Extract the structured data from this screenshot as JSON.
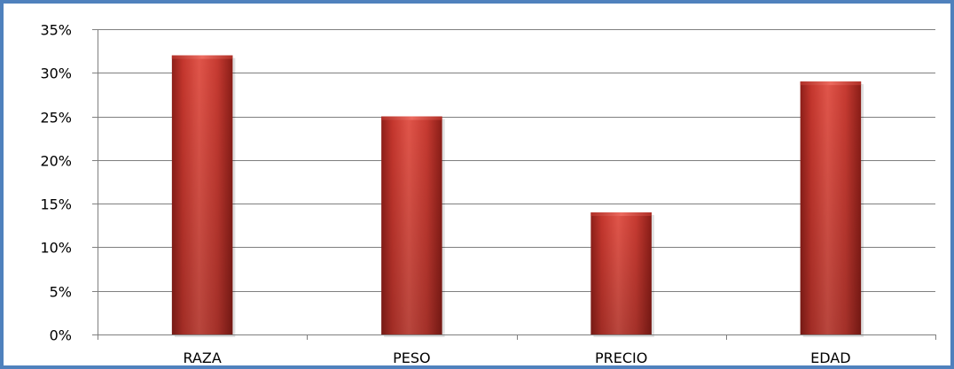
{
  "chart_data": {
    "type": "bar",
    "title": "",
    "xlabel": "",
    "ylabel": "",
    "categories": [
      "RAZA",
      "PESO",
      "PRECIO",
      "EDAD"
    ],
    "values": [
      32,
      25,
      14,
      29
    ],
    "value_format": "percent",
    "ylim": [
      0,
      35
    ],
    "yticks": [
      0,
      5,
      10,
      15,
      20,
      25,
      30,
      35
    ],
    "ytick_labels": [
      "0%",
      "5%",
      "10%",
      "15%",
      "20%",
      "25%",
      "30%",
      "35%"
    ],
    "grid": true,
    "legend": "none",
    "bar_color": "#c0392b",
    "frame_color": "#4f81bd",
    "gridline_color": "#7f7f7f"
  }
}
